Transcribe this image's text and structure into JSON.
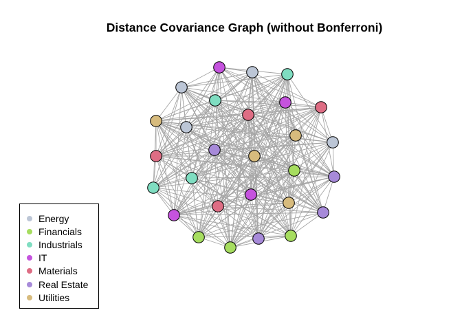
{
  "title": "Distance Covariance Graph (without Bonferroni)",
  "colors": {
    "edge": "#a6a6a6",
    "node_border": "#000000",
    "Energy": "#bcc6d6",
    "Financials": "#a6dd5f",
    "Industrials": "#7fddc1",
    "IT": "#c553de",
    "Materials": "#de6d84",
    "Real Estate": "#a78ad9",
    "Utilities": "#d7bb7d"
  },
  "legend": {
    "items": [
      {
        "label": "Energy",
        "color": "#bcc6d6"
      },
      {
        "label": "Financials",
        "color": "#a6dd5f"
      },
      {
        "label": "Industrials",
        "color": "#7fddc1"
      },
      {
        "label": "IT",
        "color": "#c553de"
      },
      {
        "label": "Materials",
        "color": "#de6d84"
      },
      {
        "label": "Real Estate",
        "color": "#a78ad9"
      },
      {
        "label": "Utilities",
        "color": "#d7bb7d"
      }
    ]
  },
  "graph": {
    "node_sectors": [
      "IT",
      "Energy",
      "Industrials",
      "Energy",
      "Industrials",
      "IT",
      "Materials",
      "Materials",
      "Utilities",
      "Energy",
      "Utilities",
      "Energy",
      "Real Estate",
      "Utilities",
      "Materials",
      "Financials",
      "Industrials",
      "Industrials",
      "Real Estate",
      "IT",
      "Materials",
      "Utilities",
      "IT",
      "Real Estate",
      "Financials",
      "Financials",
      "Real Estate",
      "Financials"
    ],
    "density": 0.78
  }
}
